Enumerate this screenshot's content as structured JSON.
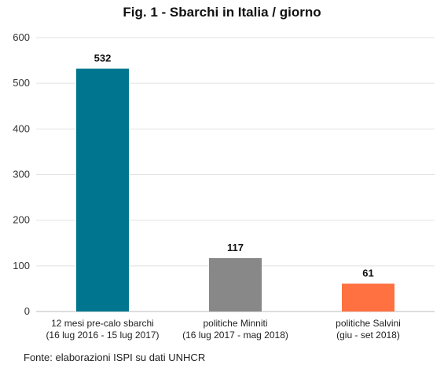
{
  "chart_data": {
    "type": "bar",
    "title": "Fig. 1 - Sbarchi in Italia / giorno",
    "categories": [
      [
        "12 mesi pre-calo sbarchi",
        "(16 lug 2016 - 15 lug 2017)"
      ],
      [
        "politiche Minniti",
        "(16 lug 2017 - mag 2018)"
      ],
      [
        "politiche Salvini",
        "(giu - set 2018)"
      ]
    ],
    "values": [
      532,
      117,
      61
    ],
    "colors": [
      "#00758f",
      "#888888",
      "#ff7140"
    ],
    "ylim": [
      0,
      600
    ],
    "yticks": [
      0,
      100,
      200,
      300,
      400,
      500,
      600
    ],
    "grid": true,
    "xlabel": "",
    "ylabel": ""
  },
  "source": "Fonte: elaborazioni ISPI su dati UNHCR"
}
